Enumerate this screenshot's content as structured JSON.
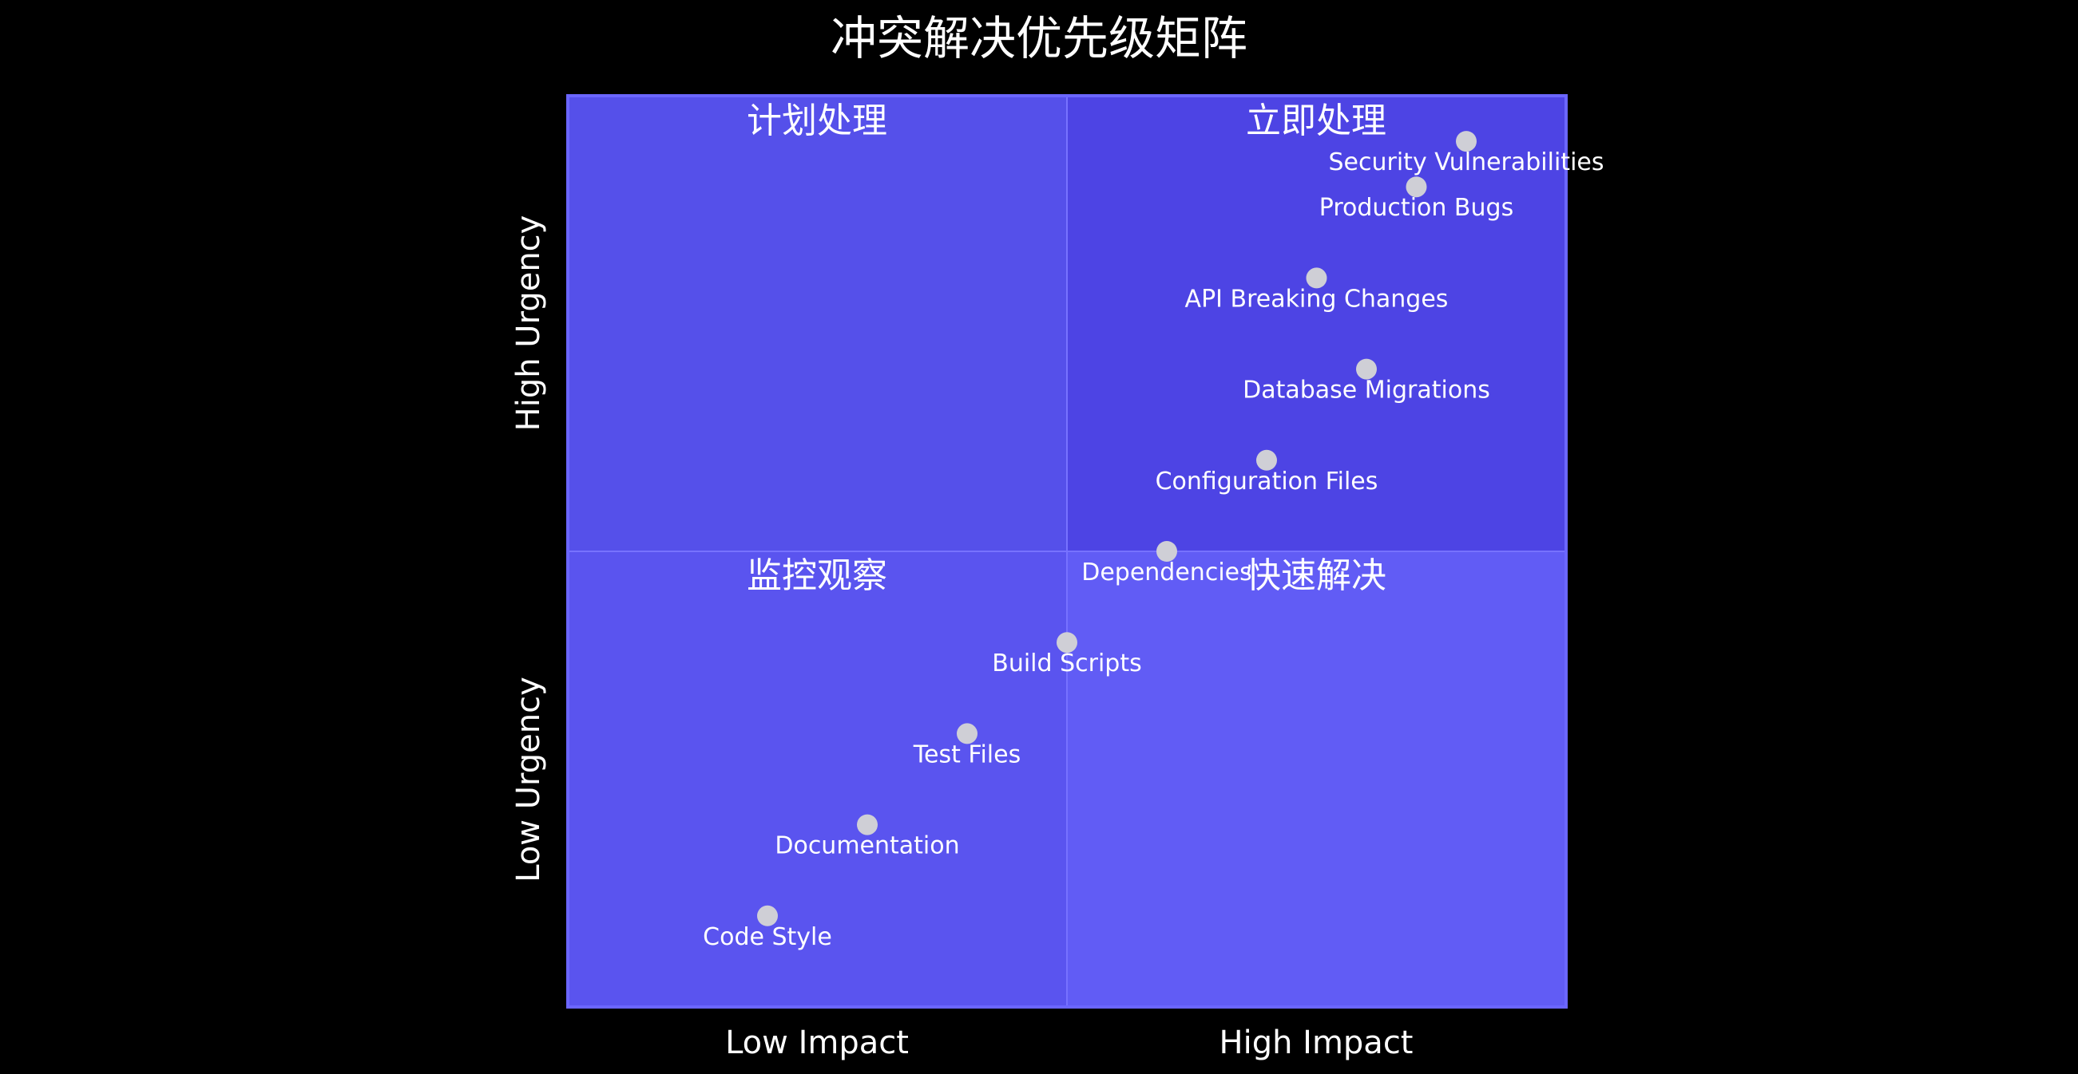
{
  "chart_data": {
    "type": "scatter",
    "title": "冲突解决优先级矩阵",
    "x_axis": {
      "low_label": "Low Impact",
      "high_label": "High Impact",
      "range": [
        0,
        1
      ]
    },
    "y_axis": {
      "low_label": "Low Urgency",
      "high_label": "High Urgency",
      "range": [
        0,
        1
      ]
    },
    "quadrants": {
      "top_left": {
        "label": "计划处理",
        "color": "#5550ea"
      },
      "top_right": {
        "label": "立即处理",
        "color": "#4d44e4"
      },
      "bottom_left": {
        "label": "监控观察",
        "color": "#5a54ef"
      },
      "bottom_right": {
        "label": "快速解决",
        "color": "#615cf5"
      }
    },
    "border_color": "#6b66ff",
    "point_color": "#cfcfd6",
    "points": [
      {
        "label": "Security Vulnerabilities",
        "x": 0.9,
        "y": 0.95
      },
      {
        "label": "Production Bugs",
        "x": 0.85,
        "y": 0.9
      },
      {
        "label": "API Breaking Changes",
        "x": 0.75,
        "y": 0.8
      },
      {
        "label": "Database Migrations",
        "x": 0.8,
        "y": 0.7
      },
      {
        "label": "Configuration Files",
        "x": 0.7,
        "y": 0.6
      },
      {
        "label": "Dependencies",
        "x": 0.6,
        "y": 0.5
      },
      {
        "label": "Build Scripts",
        "x": 0.5,
        "y": 0.4
      },
      {
        "label": "Test Files",
        "x": 0.4,
        "y": 0.3
      },
      {
        "label": "Documentation",
        "x": 0.3,
        "y": 0.2
      },
      {
        "label": "Code Style",
        "x": 0.2,
        "y": 0.1
      }
    ]
  }
}
